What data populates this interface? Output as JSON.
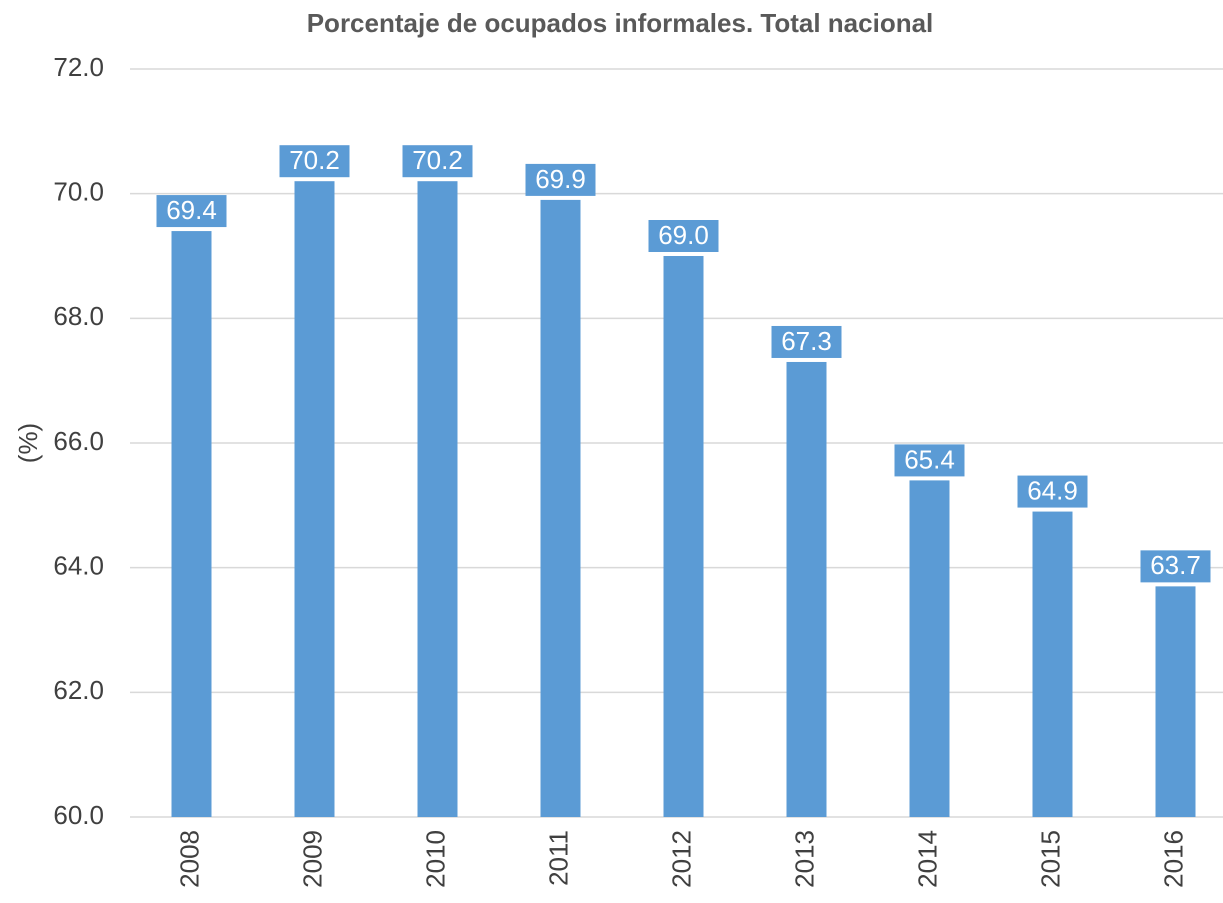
{
  "chart_data": {
    "type": "bar",
    "title": "Porcentaje de ocupados informales. Total nacional",
    "y_label": "(%)",
    "categories": [
      "2008",
      "2009",
      "2010",
      "2011",
      "2012",
      "2013",
      "2014",
      "2015",
      "2016"
    ],
    "values": [
      69.4,
      70.2,
      70.2,
      69.9,
      69.0,
      67.3,
      65.4,
      64.9,
      63.7
    ],
    "value_labels": [
      "69.4",
      "70.2",
      "70.2",
      "69.9",
      "69.0",
      "67.3",
      "65.4",
      "64.9",
      "63.7"
    ],
    "color": "#5b9bd5",
    "ylim": [
      60,
      72
    ],
    "yticks": [
      {
        "value": 60,
        "label": "60.0"
      },
      {
        "value": 62,
        "label": "62.0"
      },
      {
        "value": 64,
        "label": "64.0"
      },
      {
        "value": 66,
        "label": "66.0"
      },
      {
        "value": 68,
        "label": "68.0"
      },
      {
        "value": 70,
        "label": "70.0"
      },
      {
        "value": 72,
        "label": "72.0"
      }
    ],
    "grid": true
  }
}
